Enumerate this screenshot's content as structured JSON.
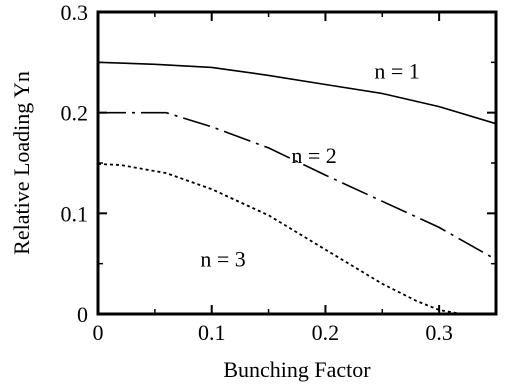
{
  "chart_data": {
    "type": "line",
    "xlabel": "Bunching Factor",
    "ylabel": "Relative Loading  Yn",
    "xlim": [
      0,
      0.35
    ],
    "ylim": [
      0,
      0.3
    ],
    "x_ticks": [
      0,
      0.1,
      0.2,
      0.3
    ],
    "x_tick_labels": [
      "0",
      "0.1",
      "0.2",
      "0.3"
    ],
    "y_ticks": [
      0,
      0.1,
      0.2,
      0.3
    ],
    "y_tick_labels": [
      "0",
      "0.1",
      "0.2",
      "0.3"
    ],
    "grid": false,
    "legend": "none",
    "series": [
      {
        "label": "n = 1",
        "style": "solid",
        "x": [
          0,
          0.05,
          0.1,
          0.15,
          0.2,
          0.25,
          0.3,
          0.35
        ],
        "y": [
          0.25,
          0.248,
          0.245,
          0.237,
          0.228,
          0.219,
          0.206,
          0.189
        ]
      },
      {
        "label": "n = 2",
        "style": "dash-dot",
        "x": [
          0,
          0.06,
          0.1,
          0.15,
          0.2,
          0.25,
          0.3,
          0.35
        ],
        "y": [
          0.2,
          0.2,
          0.186,
          0.165,
          0.138,
          0.112,
          0.086,
          0.054
        ]
      },
      {
        "label": "n = 3",
        "style": "dotted",
        "x": [
          0,
          0.02,
          0.06,
          0.1,
          0.15,
          0.2,
          0.25,
          0.28,
          0.3,
          0.32
        ],
        "y": [
          0.149,
          0.148,
          0.14,
          0.124,
          0.098,
          0.064,
          0.03,
          0.013,
          0.004,
          0
        ]
      }
    ]
  }
}
